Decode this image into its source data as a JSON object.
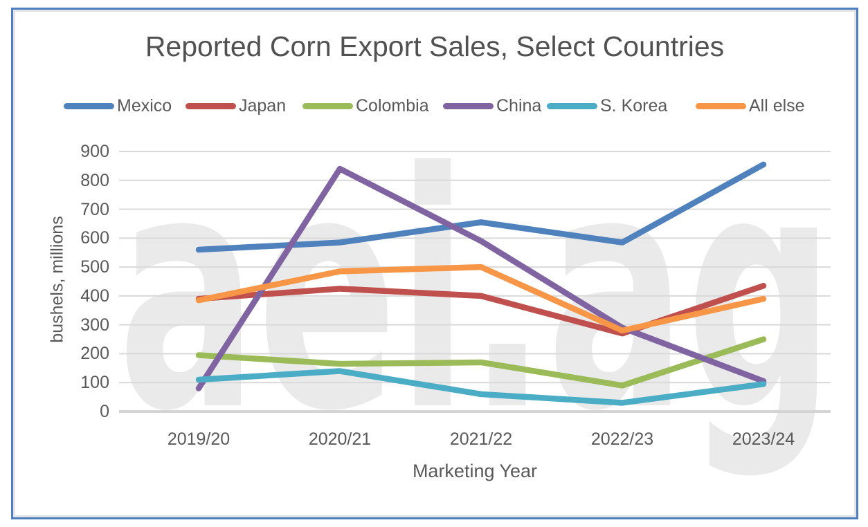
{
  "title": {
    "text": "Reported Corn Export Sales, Select Countries"
  },
  "watermark": {
    "text": "aei.ag",
    "color": "#eaeaea"
  },
  "frame": {
    "border_color": "#4d7ebf"
  },
  "axes": {
    "y_tick_labels": [
      "900",
      "800",
      "700",
      "600",
      "500",
      "400",
      "300",
      "200",
      "100",
      "0"
    ],
    "y_axis_title": "bushels, millions",
    "x_axis_title": "Marketing Year",
    "gridline_color": "#d9d9d9",
    "baseline_color": "#d4d4d4",
    "text_color": "#595959"
  },
  "chart_data": {
    "type": "line",
    "title": "Reported Corn Export Sales, Select Countries",
    "categories": [
      "2019/20",
      "2020/21",
      "2021/22",
      "2022/23",
      "2023/24"
    ],
    "series": [
      {
        "name": "Mexico",
        "color": "#4F81BD",
        "values": [
          560,
          585,
          655,
          585,
          855
        ]
      },
      {
        "name": "Japan",
        "color": "#C0504D",
        "values": [
          390,
          425,
          400,
          270,
          435
        ]
      },
      {
        "name": "Colombia",
        "color": "#9BBB59",
        "values": [
          195,
          165,
          170,
          90,
          250
        ]
      },
      {
        "name": "China",
        "color": "#8064A2",
        "values": [
          80,
          840,
          590,
          290,
          105
        ]
      },
      {
        "name": "S. Korea",
        "color": "#4BACC6",
        "values": [
          110,
          140,
          60,
          30,
          95
        ]
      },
      {
        "name": "All else",
        "color": "#F79646",
        "values": [
          385,
          485,
          500,
          280,
          390
        ]
      }
    ],
    "xlabel": "Marketing Year",
    "ylabel": "bushels, millions",
    "ylim": [
      0,
      900
    ],
    "ytick_step": 100,
    "grid": "horizontal",
    "legend_position": "top",
    "units": "bushels, millions"
  }
}
